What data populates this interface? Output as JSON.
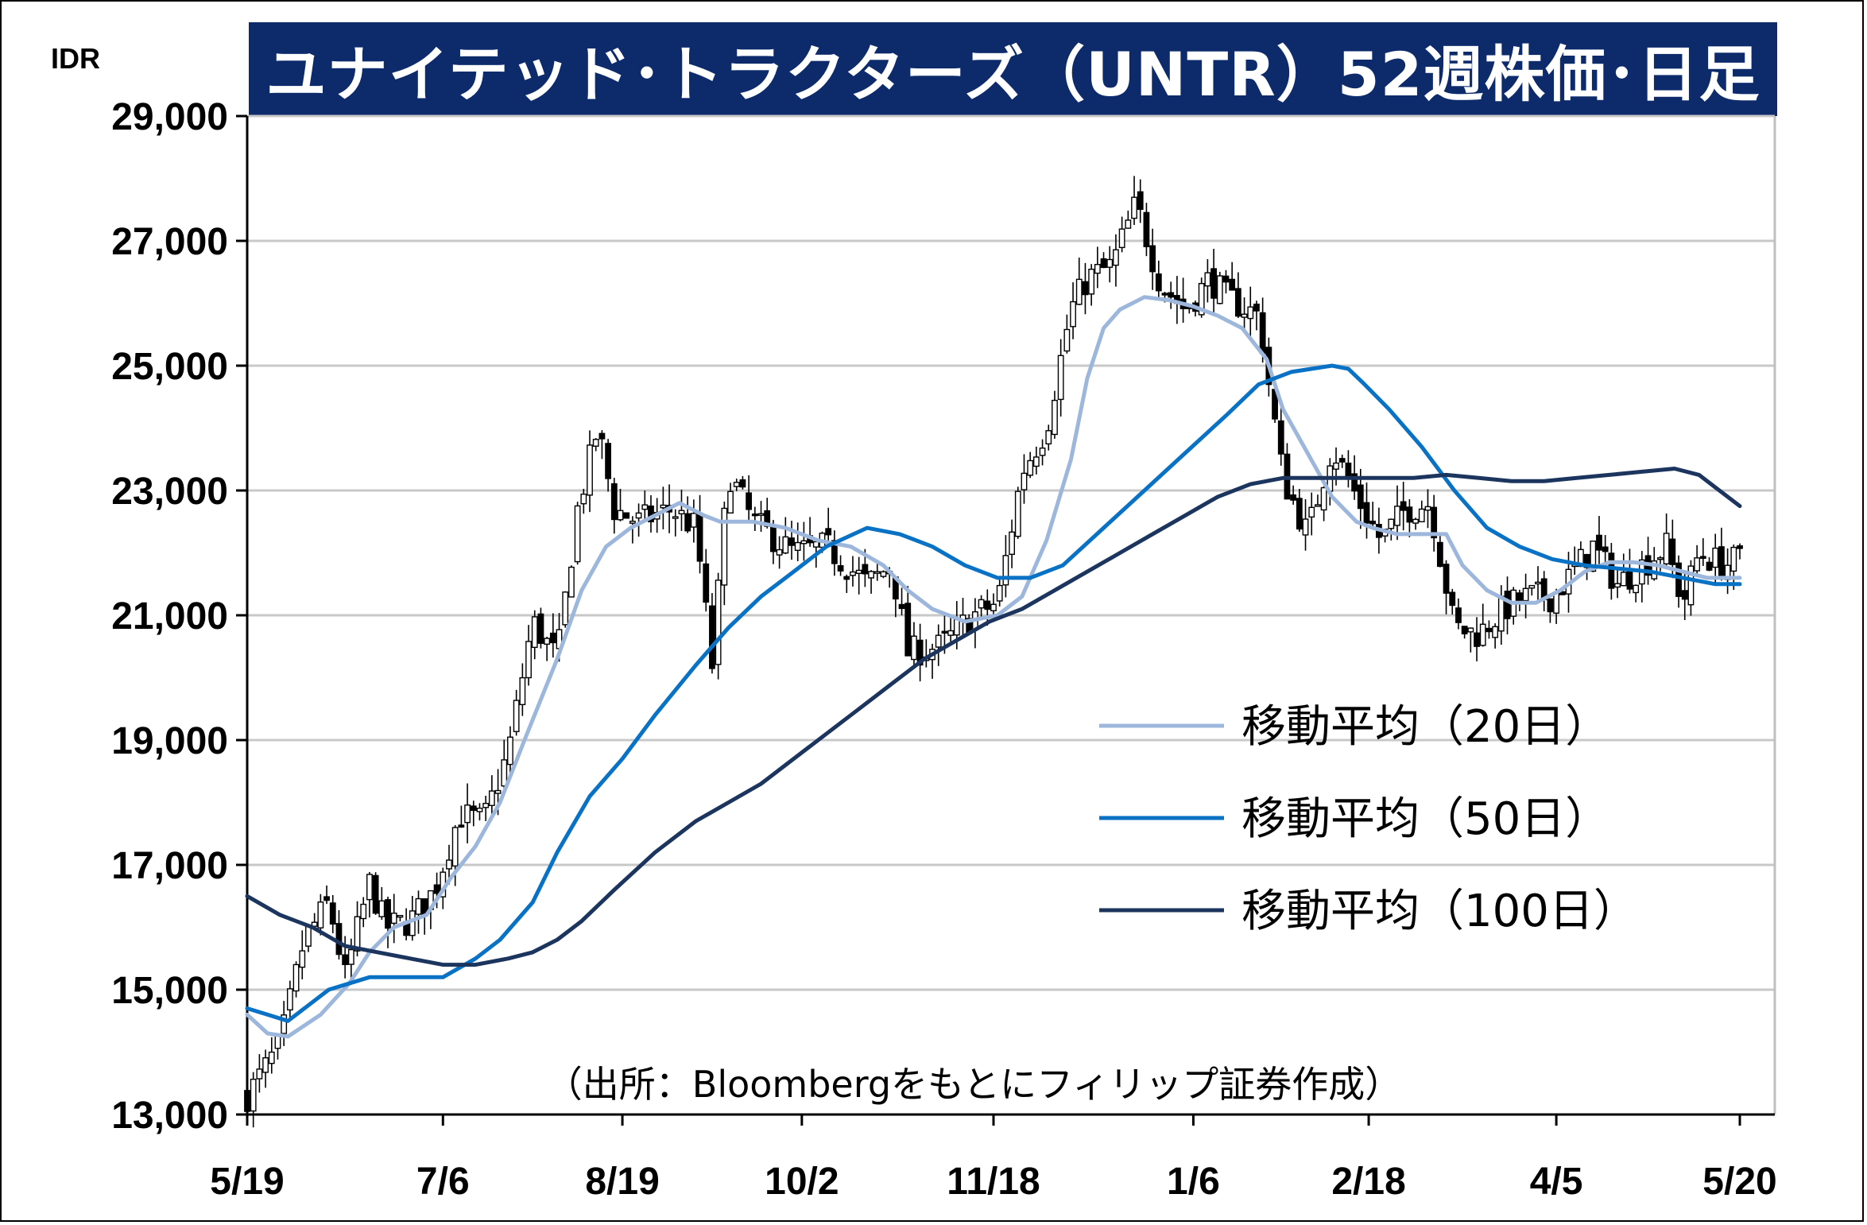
{
  "title": "ユナイテッド･トラクターズ（UNTR）52週株価･日足",
  "unit_label": "IDR",
  "source": "（出所：Bloombergをもとにフィリップ証券作成）",
  "legend": [
    {
      "label": "移動平均（20日）",
      "color": "#9db7dc"
    },
    {
      "label": "移動平均（50日）",
      "color": "#0a72c4"
    },
    {
      "label": "移動平均（100日）",
      "color": "#1c355e"
    }
  ],
  "colors": {
    "title_bg": "#0d2a6b",
    "title_fg": "#ffffff",
    "grid": "#c8c8c8",
    "candle": "#000000"
  },
  "chart_data": {
    "type": "line",
    "title": "ユナイテッド･トラクターズ（UNTR）52週株価･日足",
    "ylabel": "IDR",
    "ylim": [
      13000,
      29000
    ],
    "yticks": [
      "13,000",
      "15,000",
      "17,000",
      "19,000",
      "21,000",
      "23,000",
      "25,000",
      "27,000",
      "29,000"
    ],
    "ytick_values": [
      13000,
      15000,
      17000,
      19000,
      21000,
      23000,
      25000,
      27000,
      29000
    ],
    "xticks": [
      "5/19",
      "7/6",
      "8/19",
      "10/2",
      "11/18",
      "1/6",
      "2/18",
      "4/5",
      "5/20"
    ],
    "x_tick_days": [
      0,
      48,
      92,
      136,
      183,
      232,
      275,
      321,
      366
    ],
    "xlim_days": [
      0,
      366
    ],
    "grid": true,
    "legend_position": "middle-right",
    "candles_note": "daily candlesticks (white = up, black = down)",
    "price_path": [
      [
        0,
        13300
      ],
      [
        8,
        14100
      ],
      [
        14,
        15800
      ],
      [
        20,
        16400
      ],
      [
        24,
        15200
      ],
      [
        30,
        16700
      ],
      [
        34,
        16000
      ],
      [
        40,
        16100
      ],
      [
        46,
        16600
      ],
      [
        52,
        17800
      ],
      [
        58,
        17700
      ],
      [
        64,
        18800
      ],
      [
        70,
        20900
      ],
      [
        76,
        20300
      ],
      [
        81,
        22700
      ],
      [
        86,
        24000
      ],
      [
        90,
        22700
      ],
      [
        96,
        22500
      ],
      [
        104,
        22700
      ],
      [
        110,
        22400
      ],
      [
        114,
        20200
      ],
      [
        118,
        23300
      ],
      [
        124,
        22500
      ],
      [
        134,
        22000
      ],
      [
        142,
        22100
      ],
      [
        152,
        21500
      ],
      [
        158,
        21800
      ],
      [
        162,
        20400
      ],
      [
        170,
        20500
      ],
      [
        178,
        21000
      ],
      [
        184,
        21200
      ],
      [
        190,
        23300
      ],
      [
        196,
        24000
      ],
      [
        202,
        25900
      ],
      [
        206,
        26400
      ],
      [
        212,
        26600
      ],
      [
        218,
        27600
      ],
      [
        224,
        26300
      ],
      [
        230,
        25900
      ],
      [
        236,
        26400
      ],
      [
        240,
        26100
      ],
      [
        248,
        25800
      ],
      [
        254,
        23200
      ],
      [
        260,
        22300
      ],
      [
        266,
        23700
      ],
      [
        272,
        22900
      ],
      [
        278,
        22200
      ],
      [
        284,
        22700
      ],
      [
        290,
        22800
      ],
      [
        296,
        20800
      ],
      [
        302,
        20700
      ],
      [
        308,
        21100
      ],
      [
        314,
        21300
      ],
      [
        320,
        21300
      ],
      [
        324,
        21600
      ],
      [
        330,
        22100
      ],
      [
        336,
        21500
      ],
      [
        342,
        21800
      ],
      [
        348,
        22100
      ],
      [
        352,
        21200
      ],
      [
        356,
        22000
      ],
      [
        362,
        21800
      ],
      [
        366,
        21900
      ]
    ],
    "series": [
      {
        "name": "移動平均（20日）",
        "x_days": [
          0,
          5,
          10,
          18,
          25,
          30,
          36,
          44,
          50,
          56,
          62,
          68,
          76,
          82,
          88,
          94,
          100,
          106,
          112,
          116,
          124,
          132,
          140,
          148,
          156,
          162,
          168,
          176,
          184,
          190,
          196,
          202,
          206,
          210,
          214,
          220,
          226,
          232,
          238,
          244,
          250,
          254,
          260,
          266,
          272,
          276,
          282,
          288,
          294,
          298,
          304,
          310,
          316,
          322,
          328,
          334,
          340,
          346,
          352,
          358,
          366
        ],
        "values": [
          14600,
          14300,
          14250,
          14600,
          15100,
          15600,
          16000,
          16200,
          16800,
          17300,
          18000,
          19000,
          20300,
          21400,
          22100,
          22400,
          22600,
          22800,
          22600,
          22500,
          22500,
          22400,
          22200,
          22100,
          21800,
          21400,
          21100,
          20900,
          21000,
          21300,
          22200,
          23500,
          24800,
          25600,
          25900,
          26100,
          26050,
          25950,
          25800,
          25600,
          25100,
          24300,
          23600,
          22900,
          22500,
          22400,
          22300,
          22300,
          22300,
          21800,
          21400,
          21200,
          21200,
          21400,
          21700,
          21850,
          21850,
          21800,
          21700,
          21600,
          21600
        ]
      },
      {
        "name": "移動平均（50日）",
        "x_days": [
          0,
          5,
          10,
          20,
          30,
          40,
          48,
          56,
          62,
          70,
          76,
          84,
          92,
          100,
          110,
          118,
          126,
          134,
          142,
          152,
          160,
          168,
          176,
          184,
          192,
          200,
          210,
          220,
          230,
          240,
          248,
          256,
          266,
          270,
          274,
          280,
          288,
          296,
          304,
          312,
          320,
          328,
          336,
          344,
          352,
          360,
          366
        ],
        "values": [
          14700,
          14600,
          14500,
          15000,
          15200,
          15200,
          15200,
          15500,
          15800,
          16400,
          17200,
          18100,
          18700,
          19400,
          20200,
          20800,
          21300,
          21700,
          22100,
          22400,
          22300,
          22100,
          21800,
          21600,
          21600,
          21800,
          22400,
          23000,
          23600,
          24200,
          24700,
          24900,
          25000,
          24950,
          24700,
          24300,
          23700,
          23000,
          22400,
          22100,
          21900,
          21800,
          21750,
          21700,
          21600,
          21500,
          21500
        ]
      },
      {
        "name": "移動平均（100日）",
        "x_days": [
          0,
          8,
          16,
          24,
          32,
          40,
          48,
          56,
          64,
          70,
          76,
          82,
          90,
          100,
          110,
          118,
          126,
          134,
          142,
          150,
          158,
          166,
          174,
          182,
          190,
          198,
          206,
          214,
          222,
          230,
          238,
          246,
          254,
          262,
          270,
          278,
          286,
          294,
          302,
          310,
          318,
          326,
          334,
          342,
          350,
          356,
          360,
          366
        ],
        "values": [
          16500,
          16200,
          16000,
          15700,
          15600,
          15500,
          15400,
          15400,
          15500,
          15600,
          15800,
          16100,
          16600,
          17200,
          17700,
          18000,
          18300,
          18700,
          19100,
          19500,
          19900,
          20300,
          20600,
          20900,
          21100,
          21400,
          21700,
          22000,
          22300,
          22600,
          22900,
          23100,
          23200,
          23200,
          23200,
          23200,
          23200,
          23250,
          23200,
          23150,
          23150,
          23200,
          23250,
          23300,
          23350,
          23250,
          23050,
          22750
        ]
      }
    ]
  }
}
